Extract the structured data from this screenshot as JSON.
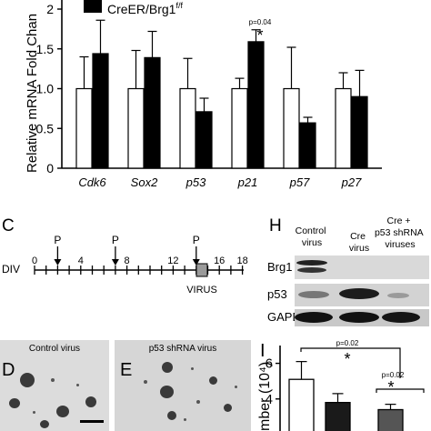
{
  "panelB": {
    "legend_label_prefix": "CreER/Brg1",
    "legend_label_sup": "f/f",
    "ylabel": "Relative mRNA Fold Chan",
    "pvalue": "p=0.04",
    "star": "*",
    "colors": {
      "control": "#ffffff",
      "cre": "#000000"
    }
  },
  "chart_data": [
    {
      "type": "bar",
      "categories": [
        "Cdk6",
        "Sox2",
        "p53",
        "p21",
        "p57",
        "p27"
      ],
      "series": [
        {
          "values": [
            1.0,
            1.0,
            1.0,
            1.0,
            1.0,
            1.0
          ],
          "errors": [
            0.4,
            0.48,
            0.38,
            0.13,
            0.52,
            0.2
          ]
        },
        {
          "name": "CreER/Brg1 f/f",
          "values": [
            1.44,
            1.39,
            0.71,
            1.59,
            0.57,
            0.9
          ],
          "errors": [
            0.42,
            0.33,
            0.17,
            0.15,
            0.07,
            0.33
          ]
        }
      ],
      "yticks": [
        "0",
        "0.5",
        "1.0",
        "1.5",
        "2"
      ],
      "ylabel": "Relative mRNA Fold Chan",
      "ylim": [
        0,
        2
      ]
    },
    {
      "type": "bar",
      "categories": [
        "Control virus",
        "Cre virus",
        "Cre + p53 shRNA viruses"
      ],
      "values": [
        5.1,
        3.8,
        3.4
      ],
      "errors": [
        1.0,
        0.5,
        0.3
      ],
      "yticks": [
        "4",
        "6"
      ],
      "ylabel": "mber (10⁴)",
      "ylim": [
        2.2,
        7
      ]
    }
  ],
  "panelC": {
    "letter": "C",
    "div_label": "DIV",
    "ticks": [
      "0",
      "4",
      "8",
      "12",
      "16",
      "18"
    ],
    "arrow_label": "P",
    "virus_label": "VIRUS"
  },
  "panelH": {
    "letter": "H",
    "lane_labels": [
      [
        "Control",
        "virus"
      ],
      [
        "Cre",
        "virus"
      ],
      [
        "Cre +",
        "p53 shRNA",
        "viruses"
      ]
    ],
    "rows": [
      "Brg1",
      "p53",
      "GAPDH"
    ]
  },
  "panelD": {
    "letter": "D",
    "label": "Control virus"
  },
  "panelE": {
    "letter": "E",
    "label": "p53 shRNA virus"
  },
  "panelI": {
    "letter": "I",
    "pvalue_main": "p=0.02",
    "pvalue_right": "p=0.02",
    "star": "*"
  }
}
